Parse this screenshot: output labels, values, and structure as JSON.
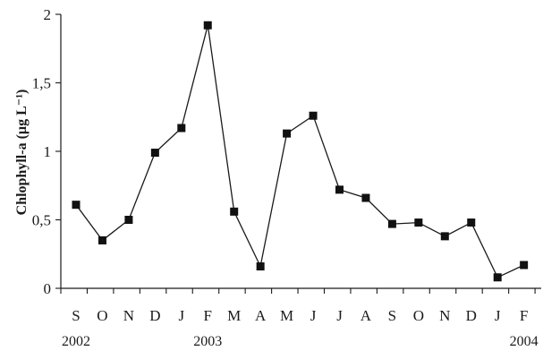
{
  "chart_data": {
    "type": "line",
    "xlabel": "",
    "ylabel": "Chlophyll-a (µg L⁻¹)",
    "ylim": [
      0,
      2
    ],
    "yticks": [
      0,
      0.5,
      1,
      1.5,
      2
    ],
    "ytick_labels": [
      "0",
      "0,5",
      "1",
      "1,5",
      "2"
    ],
    "categories": [
      "S",
      "O",
      "N",
      "D",
      "J",
      "F",
      "M",
      "A",
      "M",
      "J",
      "J",
      "A",
      "S",
      "O",
      "N",
      "D",
      "J",
      "F"
    ],
    "year_labels": [
      {
        "text": "2002",
        "at_index": 0
      },
      {
        "text": "2003",
        "at_index": 5
      },
      {
        "text": "2004",
        "at_index": 17
      }
    ],
    "series": [
      {
        "values": [
          0.61,
          0.35,
          0.5,
          0.99,
          1.17,
          1.92,
          0.56,
          0.16,
          1.13,
          1.26,
          0.72,
          0.66,
          0.47,
          0.48,
          0.38,
          0.48,
          0.08,
          0.17
        ]
      }
    ],
    "grid": false,
    "marker": "square",
    "color": "#111111"
  }
}
